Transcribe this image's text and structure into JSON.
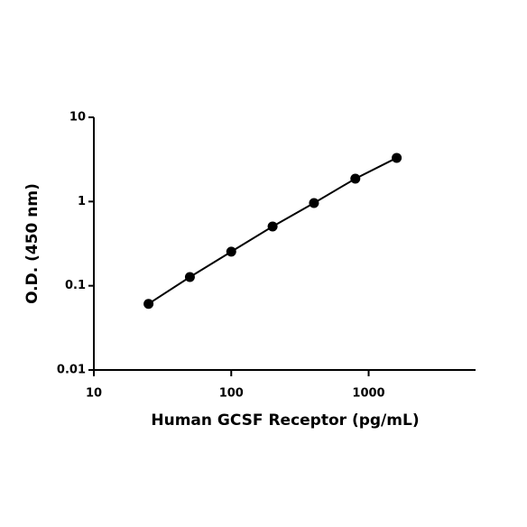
{
  "chart_data": {
    "type": "line",
    "x_label": "Human GCSF Receptor (pg/mL)",
    "y_label": "O.D. (450 nm)",
    "x": [
      25,
      50,
      100,
      200,
      400,
      800,
      1600
    ],
    "series": [
      {
        "color": "#000000",
        "values": [
          0.061,
          0.127,
          0.254,
          0.506,
          0.96,
          1.87,
          3.3
        ]
      }
    ],
    "xscale": "log",
    "yscale": "log",
    "xlim": [
      10,
      6000
    ],
    "ylim": [
      0.01,
      10
    ],
    "xticks": [
      10,
      100,
      1000
    ],
    "yticks": [
      0.01,
      0.1,
      1,
      10
    ]
  }
}
